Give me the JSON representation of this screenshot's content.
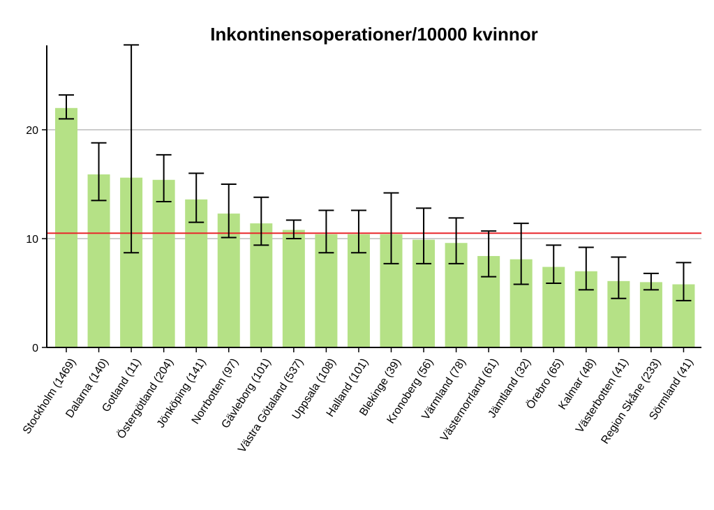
{
  "chart_data": {
    "type": "bar",
    "title": "Inkontinensoperationer/10000 kvinnor",
    "xlabel": "",
    "ylabel": "",
    "ylim": [
      0,
      28
    ],
    "yticks": [
      "0",
      "10",
      "20"
    ],
    "grid": "horizontal at 10 and 20",
    "categories": [
      "Stockholm (1469)",
      "Dalarna (140)",
      "Gotland (11)",
      "Östergötland (204)",
      "Jönköping (141)",
      "Norrbotten (97)",
      "Gävleborg (101)",
      "Västra Götaland (537)",
      "Uppsala (108)",
      "Halland (101)",
      "Blekinge (39)",
      "Kronoberg (56)",
      "Värmland (78)",
      "Västernorrland (61)",
      "Jämtland (32)",
      "Örebro (65)",
      "Kalmar (48)",
      "Västerbotten (41)",
      "Region Skåne (233)",
      "Sörmland (41)"
    ],
    "values": [
      22.0,
      15.9,
      15.6,
      15.4,
      13.6,
      12.3,
      11.4,
      10.8,
      10.4,
      10.4,
      10.4,
      9.9,
      9.6,
      8.4,
      8.1,
      7.4,
      7.0,
      6.1,
      6.0,
      5.8
    ],
    "ci_low": [
      21.0,
      13.5,
      8.7,
      13.4,
      11.5,
      10.1,
      9.4,
      10.0,
      8.7,
      8.7,
      7.7,
      7.7,
      7.7,
      6.5,
      5.8,
      5.9,
      5.3,
      4.5,
      5.3,
      4.3
    ],
    "ci_high": [
      23.2,
      18.8,
      27.8,
      17.7,
      16.0,
      15.0,
      13.8,
      11.7,
      12.6,
      12.6,
      14.2,
      12.8,
      11.9,
      10.7,
      11.4,
      9.4,
      9.2,
      8.3,
      6.8,
      7.8
    ],
    "reference_line": 10.5,
    "colors": {
      "bar": "#b5e186",
      "error_bar": "#000000",
      "reference_line": "#e8262b",
      "grid": "#999999",
      "axis": "#000000"
    }
  }
}
